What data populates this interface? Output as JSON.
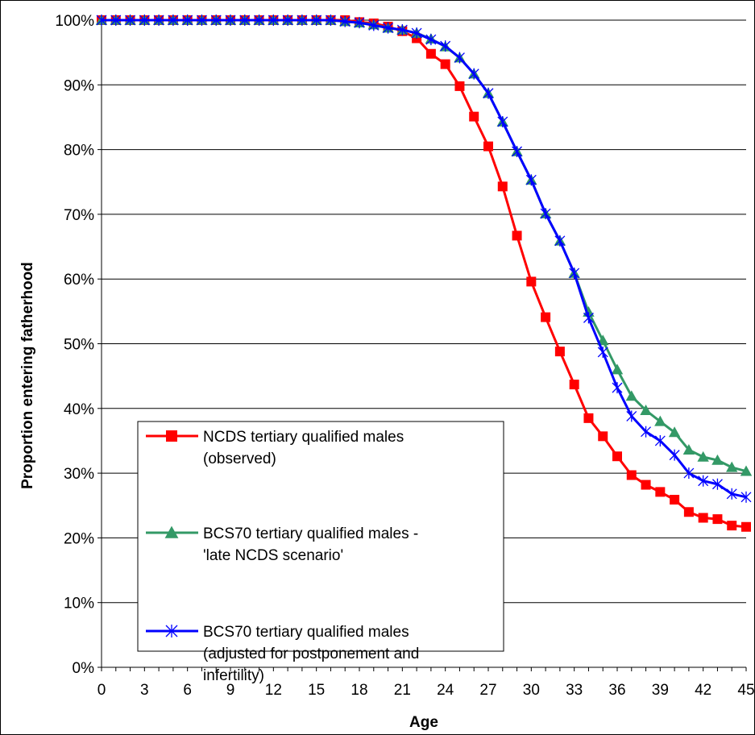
{
  "chart_data": {
    "type": "line",
    "title": "",
    "xlabel": "Age",
    "ylabel": "Proportion entering fatherhood",
    "xlim": [
      0,
      45
    ],
    "ylim": [
      0,
      1
    ],
    "x_tick_labels": [
      "0",
      "3",
      "6",
      "9",
      "12",
      "15",
      "18",
      "21",
      "24",
      "27",
      "30",
      "33",
      "36",
      "39",
      "42",
      "45"
    ],
    "x_tick_values": [
      0,
      3,
      6,
      9,
      12,
      15,
      18,
      21,
      24,
      27,
      30,
      33,
      36,
      39,
      42,
      45
    ],
    "y_tick_labels": [
      "0%",
      "10%",
      "20%",
      "30%",
      "40%",
      "50%",
      "60%",
      "70%",
      "80%",
      "90%",
      "100%"
    ],
    "y_tick_values": [
      0,
      0.1,
      0.2,
      0.3,
      0.4,
      0.5,
      0.6,
      0.7,
      0.8,
      0.9,
      1.0
    ],
    "grid": "horizontal",
    "legend_position": "bottom-left",
    "x": [
      0,
      1,
      2,
      3,
      4,
      5,
      6,
      7,
      8,
      9,
      10,
      11,
      12,
      13,
      14,
      15,
      16,
      17,
      18,
      19,
      20,
      21,
      22,
      23,
      24,
      25,
      26,
      27,
      28,
      29,
      30,
      31,
      32,
      33,
      34,
      35,
      36,
      37,
      38,
      39,
      40,
      41,
      42,
      43,
      44,
      45
    ],
    "series": [
      {
        "name_lines": [
          "NCDS tertiary qualified males",
          "(observed)"
        ],
        "color": "#ff0000",
        "marker": "square",
        "values": [
          1,
          1,
          1,
          1,
          1,
          1,
          1,
          1,
          1,
          1,
          1,
          1,
          1,
          1,
          1,
          1,
          1,
          1,
          0.997,
          0.995,
          0.99,
          0.983,
          0.972,
          0.948,
          0.932,
          0.898,
          0.851,
          0.805,
          0.743,
          0.667,
          0.596,
          0.541,
          0.488,
          0.437,
          0.385,
          0.357,
          0.326,
          0.297,
          0.282,
          0.271,
          0.259,
          0.24,
          0.231,
          0.229,
          0.219,
          0.217
        ]
      },
      {
        "name_lines": [
          "BCS70 tertiary qualified males -",
          "'late NCDS scenario'"
        ],
        "color": "#339966",
        "marker": "triangle",
        "values": [
          1,
          1,
          1,
          1,
          1,
          1,
          1,
          1,
          1,
          1,
          1,
          1,
          1,
          1,
          1,
          1,
          1,
          0.998,
          0.996,
          0.993,
          0.988,
          0.985,
          0.98,
          0.971,
          0.959,
          0.942,
          0.917,
          0.887,
          0.843,
          0.797,
          0.753,
          0.701,
          0.659,
          0.609,
          0.549,
          0.505,
          0.46,
          0.419,
          0.397,
          0.38,
          0.363,
          0.336,
          0.325,
          0.32,
          0.309,
          0.303
        ]
      },
      {
        "name_lines": [
          "BCS70 tertiary qualified males",
          "(adjusted for postponement and",
          "infertility)"
        ],
        "color": "#0000ff",
        "marker": "asterisk",
        "values": [
          1,
          1,
          1,
          1,
          1,
          1,
          1,
          1,
          1,
          1,
          1,
          1,
          1,
          1,
          1,
          1,
          1,
          0.998,
          0.996,
          0.992,
          0.988,
          0.985,
          0.98,
          0.97,
          0.96,
          0.942,
          0.917,
          0.887,
          0.843,
          0.797,
          0.753,
          0.701,
          0.659,
          0.609,
          0.54,
          0.487,
          0.432,
          0.388,
          0.364,
          0.35,
          0.328,
          0.3,
          0.288,
          0.283,
          0.268,
          0.263
        ]
      }
    ]
  }
}
